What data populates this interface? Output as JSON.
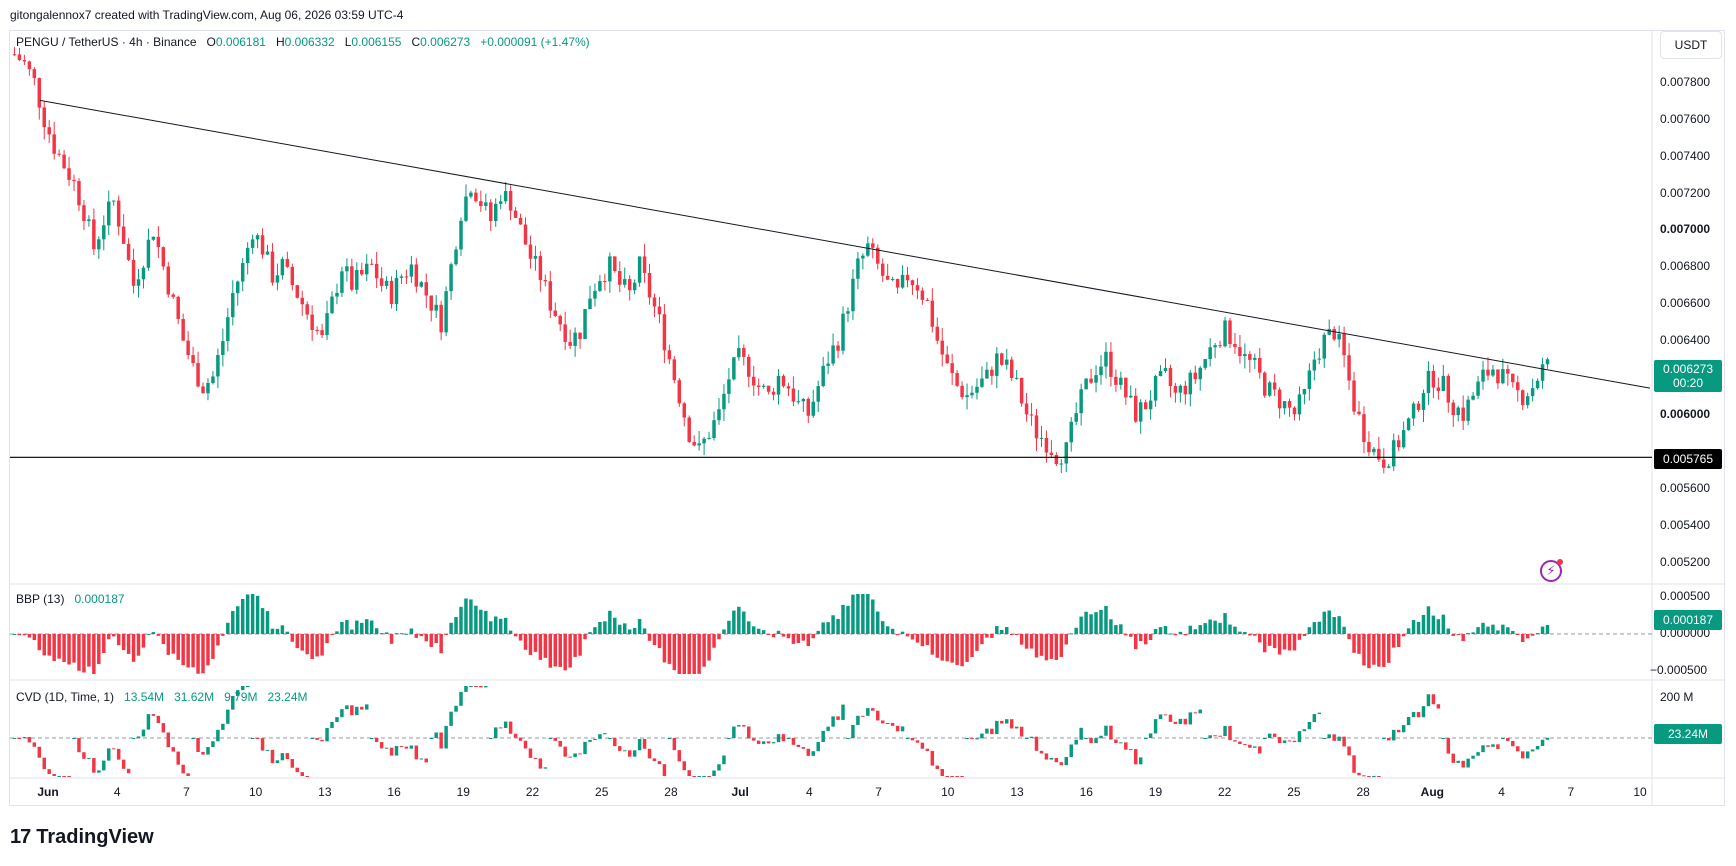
{
  "credit": "gitongalennox7 created with TradingView.com, Aug 06, 2026 03:59 UTC-4",
  "logo": {
    "mark": "17",
    "text": "TradingView"
  },
  "main_legend": {
    "symbol": "PENGU / TetherUS · 4h · Binance",
    "o_label": "O",
    "o": "0.006181",
    "h_label": "H",
    "h": "0.006332",
    "l_label": "L",
    "l": "0.006155",
    "c_label": "C",
    "c": "0.006273",
    "change": "+0.000091 (+1.47%)"
  },
  "currency_button": "USDT",
  "price_axis": [
    "0.007800",
    "0.007600",
    "0.007400",
    "0.007200",
    "0.007000",
    "0.006800",
    "0.006600",
    "0.006400",
    "0.006000",
    "0.005600",
    "0.005400",
    "0.005200"
  ],
  "current_price": {
    "value": "0.006273",
    "countdown": "00:20",
    "color": "#089981"
  },
  "support_price": {
    "value": "0.005765",
    "color": "#000000"
  },
  "bbp": {
    "label": "BBP (13)",
    "value": "0.000187",
    "axis": [
      "0.000500",
      "0.000000",
      "−0.000500"
    ],
    "last_label": "0.000187"
  },
  "cvd": {
    "label": "CVD (1D, Time, 1)",
    "v1": "13.54M",
    "v2": "31.62M",
    "v3": "9.79M",
    "v4": "23.24M",
    "axis_top": "200 M",
    "last_label": "23.24M"
  },
  "time_axis": [
    "Jun",
    "4",
    "7",
    "10",
    "13",
    "16",
    "19",
    "22",
    "25",
    "28",
    "Jul",
    "4",
    "7",
    "10",
    "13",
    "16",
    "19",
    "22",
    "25",
    "28",
    "Aug",
    "4",
    "7",
    "10"
  ],
  "colors": {
    "up": "#089981",
    "down": "#f23645",
    "trendline": "#131722"
  },
  "chart_data": {
    "type": "candlestick",
    "symbol": "PENGU/USDT",
    "interval": "4h",
    "ylim": [
      0.0051,
      0.008
    ],
    "close_series": [
      0.00795,
      0.0079,
      0.0078,
      0.0076,
      0.00745,
      0.00735,
      0.00725,
      0.0071,
      0.0069,
      0.00705,
      0.00715,
      0.00695,
      0.0067,
      0.00685,
      0.007,
      0.0068,
      0.0066,
      0.0064,
      0.00625,
      0.00615,
      0.0062,
      0.0064,
      0.00665,
      0.0068,
      0.007,
      0.0069,
      0.00675,
      0.0068,
      0.0067,
      0.0066,
      0.0065,
      0.0064,
      0.0066,
      0.0068,
      0.0067,
      0.00675,
      0.0068,
      0.0067,
      0.00665,
      0.00675,
      0.0068,
      0.0067,
      0.0066,
      0.0065,
      0.0068,
      0.0071,
      0.00725,
      0.00715,
      0.00705,
      0.0072,
      0.00715,
      0.007,
      0.00685,
      0.00675,
      0.0066,
      0.0065,
      0.0064,
      0.00645,
      0.00665,
      0.00675,
      0.0068,
      0.0067,
      0.00665,
      0.0068,
      0.00665,
      0.0065,
      0.0063,
      0.0061,
      0.0059,
      0.0058,
      0.0059,
      0.006,
      0.0062,
      0.0063,
      0.00625,
      0.00615,
      0.0061,
      0.0062,
      0.00615,
      0.00605,
      0.006,
      0.00615,
      0.0063,
      0.0064,
      0.0066,
      0.0068,
      0.0069,
      0.0068,
      0.0067,
      0.00665,
      0.00675,
      0.0067,
      0.0066,
      0.0064,
      0.00625,
      0.00615,
      0.0061,
      0.00615,
      0.0062,
      0.0063,
      0.00625,
      0.00615,
      0.006,
      0.0059,
      0.00585,
      0.00578,
      0.0058,
      0.006,
      0.00615,
      0.00625,
      0.0063,
      0.0062,
      0.0061,
      0.006,
      0.00605,
      0.00615,
      0.0062,
      0.0061,
      0.00615,
      0.0062,
      0.0063,
      0.0064,
      0.00645,
      0.0064,
      0.0063,
      0.00625,
      0.00615,
      0.0061,
      0.00605,
      0.006,
      0.0061,
      0.0063,
      0.0064,
      0.00645,
      0.0063,
      0.00605,
      0.0059,
      0.0058,
      0.00575,
      0.0058,
      0.0059,
      0.006,
      0.00615,
      0.0062,
      0.00615,
      0.00605,
      0.006,
      0.0061,
      0.0062,
      0.00625,
      0.0062,
      0.00612,
      0.0061,
      0.00615,
      0.00625,
      0.00627
    ],
    "trendline": {
      "start": 0.0077,
      "end": 0.00614
    },
    "support": 0.005765
  }
}
